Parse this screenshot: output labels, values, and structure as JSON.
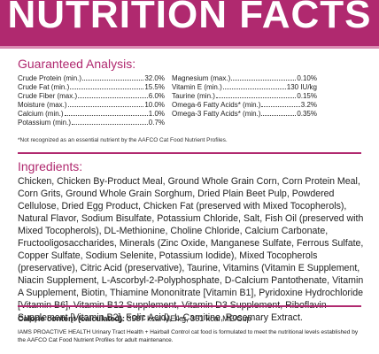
{
  "header": {
    "title": "NUTRITION FACTS"
  },
  "analysis": {
    "title": "Guaranteed Analysis:",
    "left": [
      {
        "label": "Crude Protein (min.)",
        "value": "32.0%"
      },
      {
        "label": "Crude Fat (min.)",
        "value": "15.5%"
      },
      {
        "label": "Crude Fiber (max.)",
        "value": "6.0%"
      },
      {
        "label": "Moisture (max.)",
        "value": "10.0%"
      },
      {
        "label": "Calcium (min.)",
        "value": "1.0%"
      },
      {
        "label": "Potassium (min.)",
        "value": "0.7%"
      }
    ],
    "right": [
      {
        "label": "Magnesium (max.)",
        "value": "0.10%"
      },
      {
        "label": "Vitamin E (min.)",
        "value": "130 IU/kg"
      },
      {
        "label": "Taurine (min.)",
        "value": "0.15%"
      },
      {
        "label": "Omega-6 Fatty Acids* (min.)",
        "value": "3.2%"
      },
      {
        "label": "Omega-3 Fatty Acids* (min.)",
        "value": "0.35%"
      }
    ],
    "footnote": "*Not recognized as an essential nutrient by the AAFCO Cat Food Nutrient Profiles."
  },
  "ingredients": {
    "title": "Ingredients:",
    "text": "Chicken, Chicken By-Product Meal, Ground Whole Grain Corn, Corn Protein Meal, Corn Grits, Ground Whole Grain Sorghum, Dried Plain Beet Pulp, Powdered Cellulose, Dried Egg Product, Chicken Fat (preserved with Mixed Tocopherols), Natural Flavor, Sodium Bisulfate, Potassium Chloride, Salt, Fish Oil (preserved with Mixed Tocopherols), DL-Methionine, Choline Chloride, Calcium Carbonate, Fructooligosaccharides, Minerals (Zinc Oxide, Manganese Sulfate, Ferrous Sulfate, Copper Sulfate, Sodium Selenite, Potassium Iodide), Mixed Tocopherols (preservative), Citric Acid (preservative), Taurine, Vitamins (Vitamin E Supplement, Niacin Supplement, L-Ascorbyl-2-Polyphosphate, D-Calcium Pantothenate, Vitamin A Supplement, Biotin, Thiamine Mononitrate [Vitamin B1], Pyridoxine Hydrochloride [Vitamin B6], Vitamin B12 Supplement, Vitamin D3 Supplement, Riboflavin Supplement [Vitamin B2], Folic Acid), L-Carnitine, Rosemary Extract."
  },
  "calorie": {
    "label": "Calorie content (calculated):",
    "value": "3587 kcal ME/kg, 361 kcal ME/Cup"
  },
  "statement": "IAMS PROACTIVE HEALTH Urinary Tract Health + Hairball Control cat food is formulated to meet the nutritional levels established by the AAFCO Cat Food Nutrient Profiles for adult maintenance."
}
